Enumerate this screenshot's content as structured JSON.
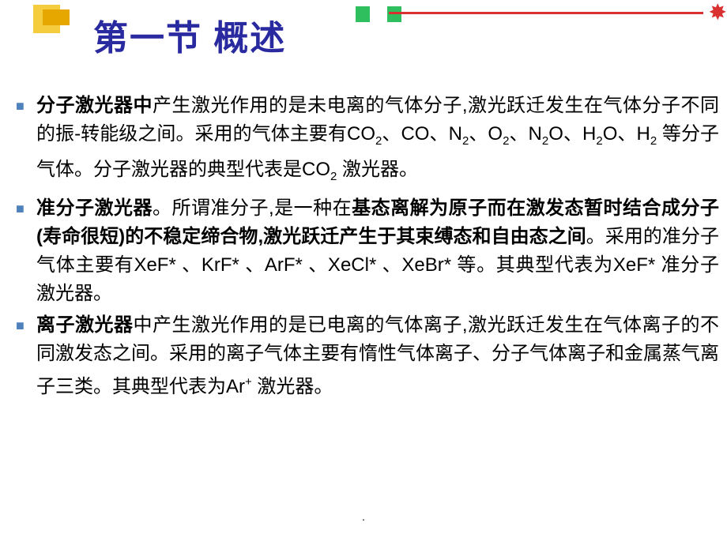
{
  "slide": {
    "title": "第一节  概述",
    "page_marker": ".",
    "colors": {
      "title_color": "#2a2aa0",
      "bullet_color": "#4f81bd",
      "accent_red": "#d93030",
      "accent_green": "#2fbf5f",
      "accent_yellow": "#f5cc3d",
      "text_color": "#000000",
      "background": "#ffffff"
    },
    "typography": {
      "title_fontsize": 44,
      "body_fontsize": 24,
      "line_height": 36
    },
    "bullets": [
      {
        "runs": [
          {
            "t": "分子激光器中",
            "b": true
          },
          {
            "t": "产生激光作用的是未电离的气体分子,激光跃迁发生在气体分子不同的振-转能级之间。采用的气体主要有CO"
          },
          {
            "t": "2",
            "sub": true
          },
          {
            "t": "、CO、N"
          },
          {
            "t": "2",
            "sub": true
          },
          {
            "t": "、O"
          },
          {
            "t": "2",
            "sub": true
          },
          {
            "t": "、N"
          },
          {
            "t": "2",
            "sub": true
          },
          {
            "t": "O、H"
          },
          {
            "t": "2",
            "sub": true
          },
          {
            "t": "O、H"
          },
          {
            "t": "2",
            "sub": true
          },
          {
            "t": " 等分子气体。分子激光器的典型代表是CO"
          },
          {
            "t": "2",
            "sub": true
          },
          {
            "t": " 激光器。"
          }
        ]
      },
      {
        "runs": [
          {
            "t": "准分子激光器",
            "b": true
          },
          {
            "t": "。所谓准分子,是一种在"
          },
          {
            "t": "基态离解为原子而在激发态暂时结合成分子(寿命很短)的不稳定缔合物,激光跃迁产生于其束缚态和自由态之间",
            "b": true
          },
          {
            "t": "。采用的准分子气体主要有XeF* 、KrF* 、ArF* 、XeCl* 、XeBr* 等。其典型代表为XeF*  准分子激光器。"
          }
        ]
      },
      {
        "runs": [
          {
            "t": "离子激光器",
            "b": true
          },
          {
            "t": "中产生激光作用的是已电离的气体离子,激光跃迁发生在气体离子的不同激发态之间。采用的离子气体主要有惰性气体离子、分子气体离子和金属蒸气离子三类。其典型代表为Ar"
          },
          {
            "t": "+",
            "sup": true
          },
          {
            "t": " 激光器。"
          }
        ]
      }
    ]
  }
}
